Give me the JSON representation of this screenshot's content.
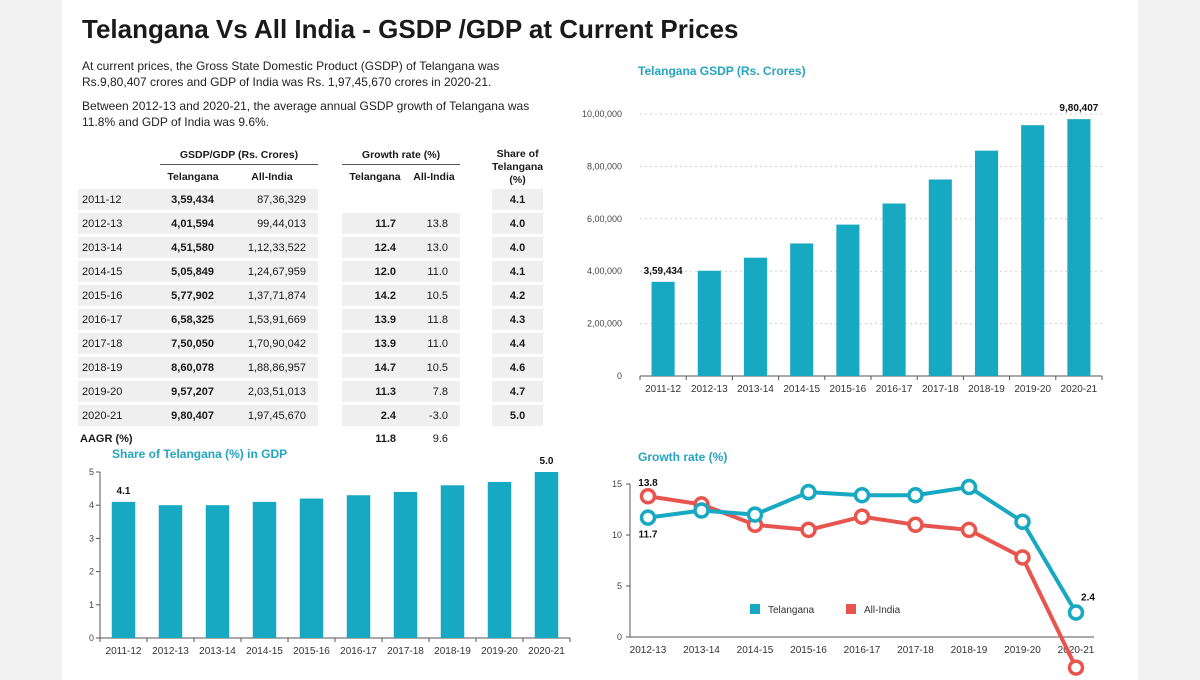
{
  "title": "Telangana Vs All India - GSDP /GDP at Current Prices",
  "paragraphs": [
    "At current prices, the Gross State Domestic Product (GSDP) of Telangana was Rs.9,80,407 crores and GDP of India was Rs. 1,97,45,670 crores in 2020-21.",
    "Between 2012-13 and 2020-21, the average annual GSDP growth of Telangana was 11.8% and GDP of India was 9.6%."
  ],
  "table": {
    "group_gsdp": "GSDP/GDP (Rs. Crores)",
    "group_growth": "Growth rate (%)",
    "share_header": "Share of Telangana (%)",
    "sub_telangana": "Telangana",
    "sub_allindia": "All-India",
    "rows": [
      {
        "year": "2011-12",
        "tg": "3,59,434",
        "ai": "87,36,329",
        "gtg": "",
        "gai": "",
        "share": "4.1"
      },
      {
        "year": "2012-13",
        "tg": "4,01,594",
        "ai": "99,44,013",
        "gtg": "11.7",
        "gai": "13.8",
        "share": "4.0"
      },
      {
        "year": "2013-14",
        "tg": "4,51,580",
        "ai": "1,12,33,522",
        "gtg": "12.4",
        "gai": "13.0",
        "share": "4.0"
      },
      {
        "year": "2014-15",
        "tg": "5,05,849",
        "ai": "1,24,67,959",
        "gtg": "12.0",
        "gai": "11.0",
        "share": "4.1"
      },
      {
        "year": "2015-16",
        "tg": "5,77,902",
        "ai": "1,37,71,874",
        "gtg": "14.2",
        "gai": "10.5",
        "share": "4.2"
      },
      {
        "year": "2016-17",
        "tg": "6,58,325",
        "ai": "1,53,91,669",
        "gtg": "13.9",
        "gai": "11.8",
        "share": "4.3"
      },
      {
        "year": "2017-18",
        "tg": "7,50,050",
        "ai": "1,70,90,042",
        "gtg": "13.9",
        "gai": "11.0",
        "share": "4.4"
      },
      {
        "year": "2018-19",
        "tg": "8,60,078",
        "ai": "1,88,86,957",
        "gtg": "14.7",
        "gai": "10.5",
        "share": "4.6"
      },
      {
        "year": "2019-20",
        "tg": "9,57,207",
        "ai": "2,03,51,013",
        "gtg": "11.3",
        "gai": "7.8",
        "share": "4.7"
      },
      {
        "year": "2020-21",
        "tg": "9,80,407",
        "ai": "1,97,45,670",
        "gtg": "2.4",
        "gai": "-3.0",
        "share": "5.0"
      }
    ],
    "aagr_label": "AAGR (%)",
    "aagr_tg": "11.8",
    "aagr_ai": "9.6"
  },
  "colors": {
    "teal": "#17a8c2",
    "red": "#e8554e",
    "title_teal": "#26a4bf"
  },
  "chart_data": [
    {
      "type": "bar",
      "title": "Telangana GSDP (Rs. Crores)",
      "categories": [
        "2011-12",
        "2012-13",
        "2013-14",
        "2014-15",
        "2015-16",
        "2016-17",
        "2017-18",
        "2018-19",
        "2019-20",
        "2020-21"
      ],
      "values": [
        359434,
        401594,
        451580,
        505849,
        577902,
        658325,
        750050,
        860078,
        957207,
        980407
      ],
      "ylim": [
        0,
        1000000
      ],
      "yticks": [
        0,
        200000,
        400000,
        600000,
        800000,
        1000000
      ],
      "ytick_labels": [
        "0",
        "2,00,000",
        "4,00,000",
        "6,00,000",
        "8,00,000",
        "10,00,000"
      ],
      "annotations": [
        {
          "index": 0,
          "text": "3,59,434"
        },
        {
          "index": 9,
          "text": "9,80,407"
        }
      ],
      "grid": true
    },
    {
      "type": "bar",
      "title": "Share of Telangana (%) in GDP",
      "categories": [
        "2011-12",
        "2012-13",
        "2013-14",
        "2014-15",
        "2015-16",
        "2016-17",
        "2017-18",
        "2018-19",
        "2019-20",
        "2020-21"
      ],
      "values": [
        4.1,
        4.0,
        4.0,
        4.1,
        4.2,
        4.3,
        4.4,
        4.6,
        4.7,
        5.0
      ],
      "ylim": [
        0,
        5
      ],
      "yticks": [
        0,
        1,
        2,
        3,
        4,
        5
      ],
      "ytick_labels": [
        "0",
        "1",
        "2",
        "3",
        "4",
        "5"
      ],
      "annotations": [
        {
          "index": 0,
          "text": "4.1"
        },
        {
          "index": 9,
          "text": "5.0"
        }
      ],
      "grid": false
    },
    {
      "type": "line",
      "title": "Growth rate (%)",
      "categories": [
        "2012-13",
        "2013-14",
        "2014-15",
        "2015-16",
        "2016-17",
        "2017-18",
        "2018-19",
        "2019-20",
        "2020-21"
      ],
      "series": [
        {
          "name": "Telangana",
          "values": [
            11.7,
            12.4,
            12.0,
            14.2,
            13.9,
            13.9,
            14.7,
            11.3,
            2.4
          ]
        },
        {
          "name": "All-India",
          "values": [
            13.8,
            13.0,
            11.0,
            10.5,
            11.8,
            11.0,
            10.5,
            7.8,
            -3.0
          ]
        }
      ],
      "ylim": [
        0,
        15
      ],
      "yticks": [
        0,
        5,
        10,
        15
      ],
      "ytick_labels": [
        "0",
        "5",
        "10",
        "15"
      ],
      "annotations": [
        {
          "series": 1,
          "index": 0,
          "text": "13.8"
        },
        {
          "series": 0,
          "index": 0,
          "text": "11.7"
        },
        {
          "series": 0,
          "index": 8,
          "text": "2.4"
        }
      ],
      "legend": "bottom-center",
      "grid": false
    }
  ]
}
